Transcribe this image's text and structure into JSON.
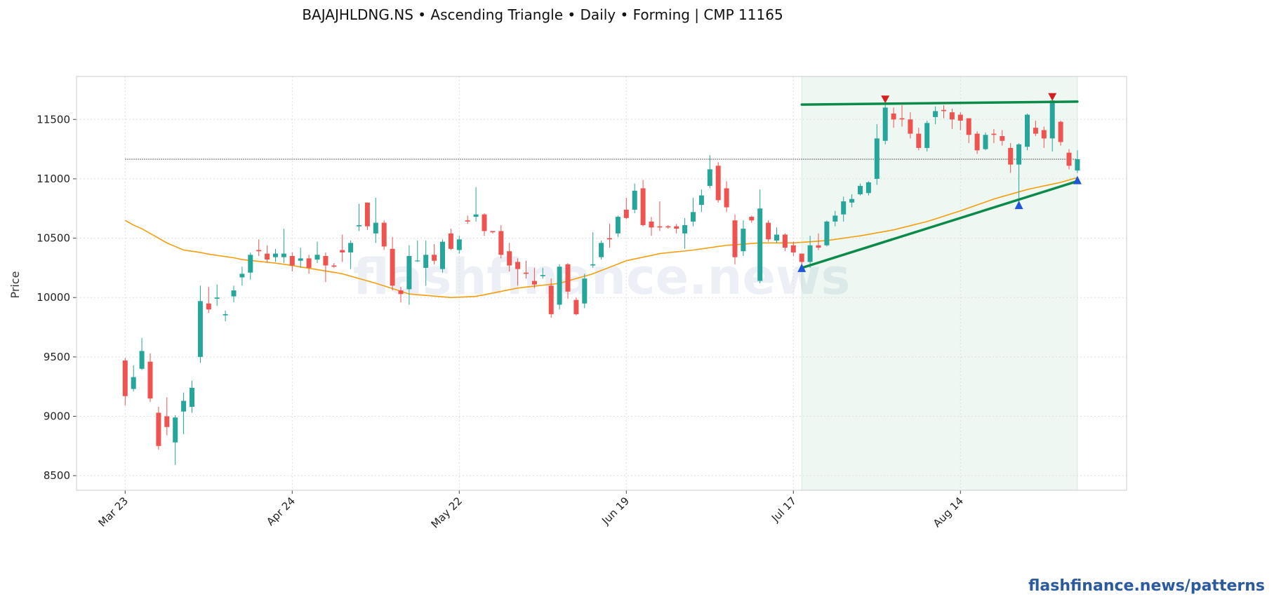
{
  "chart_data": {
    "type": "candlestick",
    "title": "BAJAJHLDNG.NS  •  Ascending Triangle  •  Daily  •  Forming  |  CMP 11165",
    "y_label": "Price",
    "watermark": "flashfinance.news",
    "footer": "flashfinance.news/patterns",
    "categories": [
      "Mar 23",
      null,
      null,
      null,
      null,
      null,
      null,
      null,
      null,
      null,
      null,
      null,
      null,
      null,
      null,
      null,
      null,
      null,
      null,
      null,
      "Apr 24",
      null,
      null,
      null,
      null,
      null,
      null,
      null,
      null,
      null,
      null,
      null,
      null,
      null,
      null,
      null,
      null,
      null,
      null,
      null,
      "May 22",
      null,
      null,
      null,
      null,
      null,
      null,
      null,
      null,
      null,
      null,
      null,
      null,
      null,
      null,
      null,
      null,
      null,
      null,
      null,
      "Jun 19",
      null,
      null,
      null,
      null,
      null,
      null,
      null,
      null,
      null,
      null,
      null,
      null,
      null,
      null,
      null,
      null,
      null,
      null,
      null,
      "Jul 17",
      null,
      null,
      null,
      null,
      null,
      null,
      null,
      null,
      null,
      null,
      null,
      null,
      null,
      null,
      null,
      null,
      null,
      null,
      null,
      "Aug 14",
      null,
      null,
      null,
      null,
      null,
      null,
      null,
      null,
      null,
      null,
      null,
      null,
      null,
      null
    ],
    "open": [
      9470,
      9230,
      9400,
      9460,
      9030,
      9000,
      8780,
      9040,
      9080,
      9500,
      9950,
      9990,
      9850,
      10010,
      10170,
      10210,
      10400,
      10370,
      10340,
      10340,
      10350,
      10310,
      10330,
      10320,
      10350,
      10270,
      10400,
      10380,
      10600,
      10800,
      10540,
      10630,
      10410,
      10060,
      10070,
      10310,
      10250,
      10360,
      10240,
      10540,
      10400,
      10650,
      10680,
      10700,
      10560,
      10560,
      10390,
      10300,
      10210,
      10140,
      10180,
      10100,
      9940,
      10280,
      9980,
      9950,
      10270,
      10340,
      10500,
      10540,
      10740,
      10740,
      10920,
      10640,
      10600,
      10600,
      10600,
      10540,
      10640,
      10780,
      10940,
      11110,
      10920,
      10650,
      10390,
      10680,
      10140,
      10630,
      10480,
      10530,
      10440,
      10370,
      10300,
      10440,
      10440,
      10640,
      10700,
      10800,
      10870,
      10880,
      11000,
      11320,
      11550,
      11510,
      11500,
      11380,
      11260,
      11520,
      11580,
      11560,
      11540,
      11510,
      11380,
      11250,
      11380,
      11360,
      11260,
      11120,
      11270,
      11430,
      11410,
      11340,
      11480,
      11220,
      11070
    ],
    "high": [
      9490,
      9430,
      9660,
      9530,
      9080,
      9160,
      9010,
      9200,
      9300,
      10100,
      10090,
      10110,
      9890,
      10100,
      10260,
      10380,
      10490,
      10440,
      10410,
      10580,
      10380,
      10420,
      10360,
      10470,
      10380,
      10290,
      10530,
      10480,
      10790,
      10800,
      10840,
      10650,
      10510,
      10090,
      10440,
      10480,
      10480,
      10450,
      10490,
      10580,
      10520,
      10690,
      10930,
      10710,
      10560,
      10610,
      10460,
      10330,
      10310,
      10250,
      10250,
      10160,
      10280,
      10290,
      10000,
      10200,
      10550,
      10480,
      10620,
      10690,
      10840,
      10960,
      10990,
      10680,
      10810,
      10610,
      10620,
      10670,
      10840,
      10910,
      11200,
      11140,
      10980,
      10700,
      10650,
      10690,
      10910,
      10650,
      10590,
      10540,
      10470,
      10370,
      10520,
      10540,
      10650,
      10730,
      10850,
      10870,
      10960,
      10980,
      11460,
      11660,
      11600,
      11620,
      11560,
      11430,
      11490,
      11610,
      11620,
      11590,
      11560,
      11510,
      11400,
      11390,
      11420,
      11410,
      11300,
      11300,
      11550,
      11490,
      11440,
      11680,
      11490,
      11250,
      11240
    ],
    "low": [
      9090,
      9210,
      9390,
      9120,
      8720,
      8840,
      8590,
      8850,
      9030,
      9450,
      9870,
      9930,
      9800,
      9960,
      10100,
      10150,
      10350,
      10300,
      10300,
      10290,
      10220,
      10250,
      10200,
      10290,
      10130,
      10250,
      10300,
      10240,
      10560,
      10570,
      10460,
      10400,
      10060,
      9960,
      9940,
      10300,
      10100,
      10280,
      10210,
      10400,
      10370,
      10620,
      10640,
      10520,
      10540,
      10330,
      10220,
      10100,
      10160,
      10080,
      10160,
      9830,
      9900,
      9990,
      9850,
      9910,
      10250,
      10320,
      10420,
      10510,
      10660,
      10710,
      10600,
      10520,
      10560,
      10580,
      10540,
      10410,
      10600,
      10720,
      10920,
      10800,
      10720,
      10280,
      10350,
      10630,
      10120,
      10470,
      10460,
      10390,
      10350,
      10250,
      10250,
      10400,
      10430,
      10600,
      10640,
      10760,
      10860,
      10860,
      10950,
      11290,
      11430,
      11440,
      11340,
      11240,
      11230,
      11460,
      11510,
      11420,
      11410,
      11300,
      11210,
      11240,
      11300,
      11280,
      11050,
      10780,
      11240,
      11360,
      11260,
      11230,
      11280,
      11080,
      11050
    ],
    "close": [
      9170,
      9330,
      9550,
      9150,
      8750,
      8910,
      8990,
      9130,
      9240,
      9970,
      9900,
      10000,
      9860,
      10060,
      10200,
      10360,
      10390,
      10320,
      10370,
      10370,
      10270,
      10330,
      10250,
      10360,
      10270,
      10260,
      10380,
      10460,
      10610,
      10600,
      10630,
      10430,
      10100,
      10030,
      10350,
      10312,
      10360,
      10310,
      10470,
      10410,
      10490,
      10640,
      10700,
      10560,
      10550,
      10360,
      10270,
      10240,
      10200,
      10110,
      10190,
      9860,
      10260,
      10050,
      9860,
      10160,
      10280,
      10460,
      10490,
      10680,
      10670,
      10900,
      10610,
      10590,
      10590,
      10590,
      10580,
      10610,
      10720,
      10860,
      11080,
      10820,
      10760,
      10340,
      10580,
      10650,
      10750,
      10490,
      10530,
      10420,
      10380,
      10300,
      10440,
      10420,
      10640,
      10690,
      10810,
      10830,
      10940,
      10970,
      11340,
      11600,
      11500,
      11500,
      11380,
      11260,
      11470,
      11570,
      11570,
      11500,
      11490,
      11370,
      11240,
      11370,
      11370,
      11320,
      11120,
      11290,
      11540,
      11380,
      11340,
      11660,
      11310,
      11110,
      11165
    ],
    "up_color": "#26a69a",
    "down_color": "#ef5350",
    "moving_average": {
      "color": "#f59e0b",
      "values": [
        10650,
        10610,
        10580,
        10540,
        10500,
        10460,
        10430,
        10400,
        10390,
        10380,
        10365,
        10355,
        10345,
        10335,
        10320,
        10312,
        10305,
        10297,
        10290,
        10280,
        10270,
        10258,
        10247,
        10235,
        10224,
        10212,
        10200,
        10180,
        10160,
        10140,
        10120,
        10098,
        10076,
        10053,
        10030,
        10024,
        10018,
        10012,
        10006,
        10000,
        10003,
        10006,
        10010,
        10024,
        10038,
        10052,
        10066,
        10080,
        10088,
        10096,
        10104,
        10112,
        10120,
        10140,
        10160,
        10180,
        10200,
        10228,
        10255,
        10283,
        10310,
        10325,
        10340,
        10355,
        10370,
        10378,
        10385,
        10392,
        10400,
        10410,
        10420,
        10430,
        10440,
        10445,
        10450,
        10455,
        10460,
        10460,
        10460,
        10460,
        10460,
        10465,
        10470,
        10475,
        10480,
        10490,
        10500,
        10510,
        10520,
        10532,
        10545,
        10557,
        10570,
        10588,
        10605,
        10623,
        10640,
        10662,
        10685,
        10708,
        10730,
        10755,
        10780,
        10805,
        10830,
        10850,
        10870,
        10890,
        10910,
        10925,
        10940,
        10955,
        10970,
        10990,
        11010
      ]
    },
    "cmp_line": 11165,
    "pattern_region": [
      81,
      114
    ],
    "pattern_color": "#0b8a4a",
    "resistance": [
      [
        81,
        11625
      ],
      [
        114,
        11650
      ]
    ],
    "support": [
      [
        81,
        10250
      ],
      [
        114,
        10980
      ]
    ],
    "peaks": [
      [
        91,
        11660
      ],
      [
        111,
        11680
      ]
    ],
    "troughs": [
      [
        81,
        10250
      ],
      [
        107,
        10780
      ],
      [
        114,
        10990
      ]
    ],
    "ylim": [
      8377,
      11862
    ],
    "yticks": [
      8500,
      9000,
      9500,
      10000,
      10500,
      11000,
      11500
    ],
    "grid": true
  }
}
